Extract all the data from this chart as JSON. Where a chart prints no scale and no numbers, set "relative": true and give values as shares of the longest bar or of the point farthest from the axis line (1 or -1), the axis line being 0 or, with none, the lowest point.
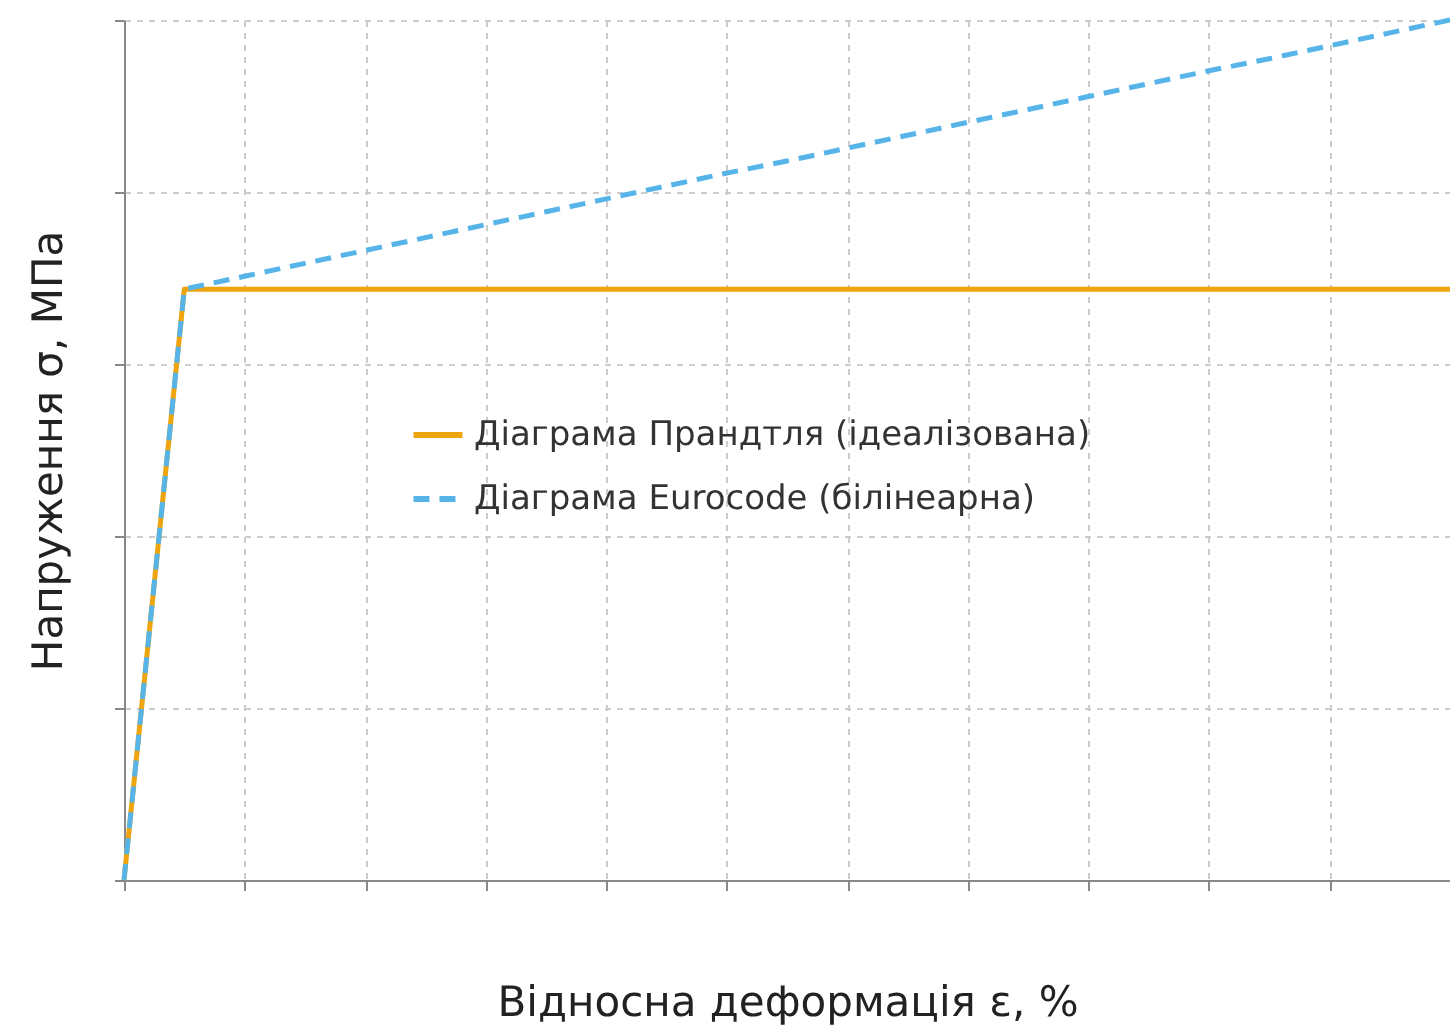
{
  "chart_data": {
    "type": "line",
    "xlabel": "Відносна деформація ε, %",
    "ylabel": "Напруження σ, МПа",
    "relative": true,
    "tick_labels": false,
    "grid": true,
    "legend": "right",
    "marker": "none",
    "categories": [
      null,
      null,
      null,
      null,
      null,
      null,
      null,
      null,
      null,
      null,
      null,
      null,
      null,
      null,
      null,
      null,
      null,
      null,
      null,
      null,
      null,
      null,
      null
    ],
    "series": [
      {
        "name": "Діаграма Прандтля (ідеалізована)",
        "color": "#eea40c",
        "line_style": "solid",
        "values": [
          0,
          0.687,
          0.687,
          0.687,
          0.687,
          0.687,
          0.687,
          0.687,
          0.687,
          0.687,
          0.687,
          0.687,
          0.687,
          0.687,
          0.687,
          0.687,
          0.687,
          0.687,
          0.687,
          0.687,
          0.687,
          0.687,
          0.687
        ]
      },
      {
        "name": "Діаграма Eurocode (білінеарна)",
        "color": "#56b4e9",
        "line_style": "dashed",
        "values": [
          0,
          0.687,
          0.702,
          0.717,
          0.732,
          0.747,
          0.762,
          0.777,
          0.792,
          0.807,
          0.822,
          0.836,
          0.851,
          0.866,
          0.881,
          0.896,
          0.911,
          0.926,
          0.941,
          0.955,
          0.97,
          0.985,
          1
        ]
      }
    ]
  }
}
